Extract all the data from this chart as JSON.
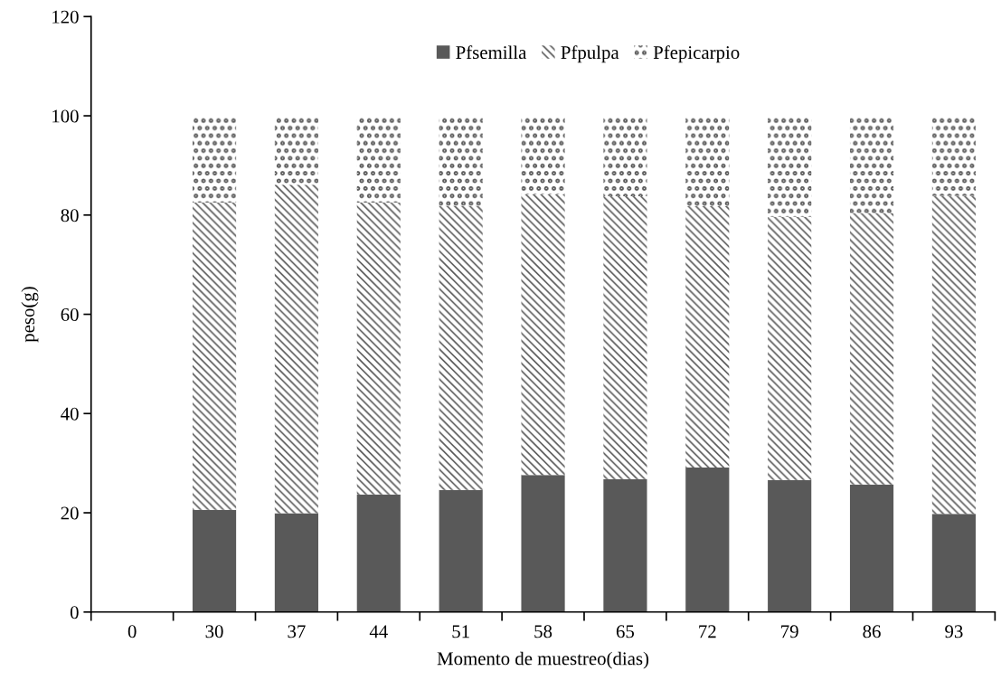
{
  "chart_data": {
    "type": "bar",
    "stacked": true,
    "xlabel": "Momento de muestreo(dias)",
    "ylabel": "peso(g)",
    "categories": [
      "0",
      "30",
      "37",
      "44",
      "51",
      "58",
      "65",
      "72",
      "79",
      "86",
      "93"
    ],
    "series": [
      {
        "name": "Pfsemilla",
        "color": "#595959",
        "values": [
          0,
          20.6,
          19.9,
          23.7,
          24.6,
          27.6,
          26.8,
          29.1,
          26.6,
          25.7,
          19.8
        ]
      },
      {
        "name": "Pfpulpa",
        "color": "#595959",
        "values": [
          0,
          61.9,
          66.2,
          58.8,
          57.3,
          56.6,
          57.0,
          52.7,
          53.0,
          54.7,
          64.1
        ]
      },
      {
        "name": "Pfepicarpio",
        "color": "#595959",
        "values": [
          0,
          17.5,
          13.9,
          17.5,
          18.1,
          15.8,
          16.2,
          18.2,
          20.4,
          19.6,
          16.1
        ]
      }
    ],
    "ylim": [
      0,
      120
    ],
    "yticks": [
      0,
      20,
      40,
      60,
      80,
      100,
      120
    ],
    "grid": false,
    "legend": "top"
  }
}
